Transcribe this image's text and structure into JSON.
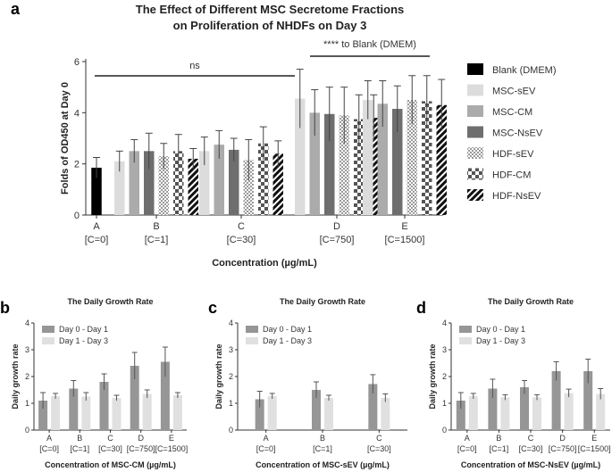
{
  "chart_data": [
    {
      "panel": "a",
      "type": "bar",
      "title": "The Effect of Different MSC Secretome Fractions on Proliferation of NHDFs on Day 3",
      "title_lines": [
        "The Effect of Different MSC Secretome Fractions",
        "on Proliferation of NHDFs on Day 3"
      ],
      "ylabel": "Folds of OD450 at Day 0",
      "xlabel": "Concentration (µg/mL)",
      "ylim": [
        0,
        6
      ],
      "yticks": [
        "0",
        "2",
        "4",
        "6"
      ],
      "groups": [
        {
          "letter": "A",
          "conc": "[C=0]",
          "bars": [
            {
              "series": "Blank (DMEM)",
              "value": 1.85,
              "err": 0.4
            }
          ]
        },
        {
          "letter": "B",
          "conc": "[C=1]",
          "bars": [
            {
              "series": "MSC-sEV",
              "value": 2.1,
              "err": 0.4
            },
            {
              "series": "MSC-CM",
              "value": 2.5,
              "err": 0.45
            },
            {
              "series": "MSC-NsEV",
              "value": 2.5,
              "err": 0.7
            },
            {
              "series": "HDF-sEV",
              "value": 2.3,
              "err": 0.5
            },
            {
              "series": "HDF-CM",
              "value": 2.5,
              "err": 0.65
            },
            {
              "series": "HDF-NsEV",
              "value": 2.2,
              "err": 0.4
            }
          ]
        },
        {
          "letter": "C",
          "conc": "[C=30]",
          "bars": [
            {
              "series": "MSC-sEV",
              "value": 2.5,
              "err": 0.55
            },
            {
              "series": "MSC-CM",
              "value": 2.75,
              "err": 0.55
            },
            {
              "series": "MSC-NsEV",
              "value": 2.55,
              "err": 0.45
            },
            {
              "series": "HDF-sEV",
              "value": 2.15,
              "err": 0.8
            },
            {
              "series": "HDF-CM",
              "value": 2.8,
              "err": 0.65
            },
            {
              "series": "HDF-NsEV",
              "value": 2.4,
              "err": 0.5
            }
          ]
        },
        {
          "letter": "D",
          "conc": "[C=750]",
          "bars": [
            {
              "series": "MSC-sEV",
              "value": 4.55,
              "err": 1.15
            },
            {
              "series": "MSC-CM",
              "value": 4.0,
              "err": 0.9
            },
            {
              "series": "MSC-NsEV",
              "value": 3.95,
              "err": 1.05
            },
            {
              "series": "HDF-sEV",
              "value": 3.9,
              "err": 1.1
            },
            {
              "series": "HDF-CM",
              "value": 3.75,
              "err": 0.95
            },
            {
              "series": "HDF-NsEV",
              "value": 3.8,
              "err": 0.9
            }
          ]
        },
        {
          "letter": "E",
          "conc": "[C=1500]",
          "bars": [
            {
              "series": "MSC-sEV",
              "value": 4.5,
              "err": 0.75
            },
            {
              "series": "MSC-CM",
              "value": 4.35,
              "err": 0.9
            },
            {
              "series": "MSC-NsEV",
              "value": 4.15,
              "err": 0.9
            },
            {
              "series": "HDF-sEV",
              "value": 4.5,
              "err": 0.95
            },
            {
              "series": "HDF-CM",
              "value": 4.45,
              "err": 1.0
            },
            {
              "series": "HDF-NsEV",
              "value": 4.3,
              "err": 1.0
            }
          ]
        }
      ],
      "legend": [
        {
          "name": "Blank (DMEM)",
          "pattern": "black"
        },
        {
          "name": "MSC-sEV",
          "pattern": "light"
        },
        {
          "name": "MSC-CM",
          "pattern": "mid"
        },
        {
          "name": "MSC-NsEV",
          "pattern": "dark"
        },
        {
          "name": "HDF-sEV",
          "pattern": "dots"
        },
        {
          "name": "HDF-CM",
          "pattern": "checker"
        },
        {
          "name": "HDF-NsEV",
          "pattern": "diag"
        }
      ],
      "annotations": {
        "ns": "ns",
        "sig": "**** to Blank (DMEM)"
      }
    },
    {
      "panel": "b",
      "type": "bar",
      "title": "The Daily Growth Rate",
      "ylabel": "Daily growth rate",
      "xlabel": "Concentration of MSC-CM (µg/mL)",
      "ylim": [
        0,
        4
      ],
      "yticks": [
        "0",
        "1",
        "2",
        "3",
        "4"
      ],
      "legend": [
        "Day 0 - Day 1",
        "Day 1 - Day 3"
      ],
      "categories": [
        {
          "letter": "A",
          "conc": "[C=0]",
          "values": [
            1.1,
            1.27
          ],
          "errs": [
            0.3,
            0.1
          ]
        },
        {
          "letter": "B",
          "conc": "[C=1]",
          "values": [
            1.55,
            1.25
          ],
          "errs": [
            0.3,
            0.15
          ]
        },
        {
          "letter": "C",
          "conc": "[C=30]",
          "values": [
            1.8,
            1.2
          ],
          "errs": [
            0.3,
            0.1
          ]
        },
        {
          "letter": "D",
          "conc": "[C=750]",
          "values": [
            2.4,
            1.35
          ],
          "errs": [
            0.5,
            0.15
          ]
        },
        {
          "letter": "E",
          "conc": "[C=1500]",
          "values": [
            2.55,
            1.3
          ],
          "errs": [
            0.55,
            0.1
          ]
        }
      ]
    },
    {
      "panel": "c",
      "type": "bar",
      "title": "The Daily Growth Rate",
      "ylabel": "Daily growth rate",
      "xlabel": "Concentration of MSC-sEV (µg/mL)",
      "ylim": [
        0,
        4
      ],
      "yticks": [
        "0",
        "1",
        "2",
        "3",
        "4"
      ],
      "legend": [
        "Day 0 - Day 1",
        "Day 1 - Day 3"
      ],
      "categories": [
        {
          "letter": "A",
          "conc": "[C=0]",
          "values": [
            1.15,
            1.27
          ],
          "errs": [
            0.3,
            0.1
          ]
        },
        {
          "letter": "B",
          "conc": "[C=1]",
          "values": [
            1.5,
            1.2
          ],
          "errs": [
            0.3,
            0.1
          ]
        },
        {
          "letter": "C",
          "conc": "[C=30]",
          "values": [
            1.72,
            1.2
          ],
          "errs": [
            0.35,
            0.15
          ]
        }
      ]
    },
    {
      "panel": "d",
      "type": "bar",
      "title": "The Daily Growth Rate",
      "ylabel": "Daily growth rate",
      "xlabel": "Concentration of MSC-NsEV (µg/mL)",
      "ylim": [
        0,
        4
      ],
      "yticks": [
        "0",
        "1",
        "2",
        "3",
        "4"
      ],
      "legend": [
        "Day 0 - Day 1",
        "Day 1 - Day 3"
      ],
      "categories": [
        {
          "letter": "A",
          "conc": "[C=0]",
          "values": [
            1.1,
            1.27
          ],
          "errs": [
            0.3,
            0.1
          ]
        },
        {
          "letter": "B",
          "conc": "[C=1]",
          "values": [
            1.55,
            1.22
          ],
          "errs": [
            0.35,
            0.1
          ]
        },
        {
          "letter": "C",
          "conc": "[C=30]",
          "values": [
            1.6,
            1.22
          ],
          "errs": [
            0.25,
            0.1
          ]
        },
        {
          "letter": "D",
          "conc": "[C=750]",
          "values": [
            2.2,
            1.38
          ],
          "errs": [
            0.35,
            0.15
          ]
        },
        {
          "letter": "E",
          "conc": "[C=1500]",
          "values": [
            2.2,
            1.35
          ],
          "errs": [
            0.45,
            0.2
          ]
        }
      ]
    }
  ]
}
